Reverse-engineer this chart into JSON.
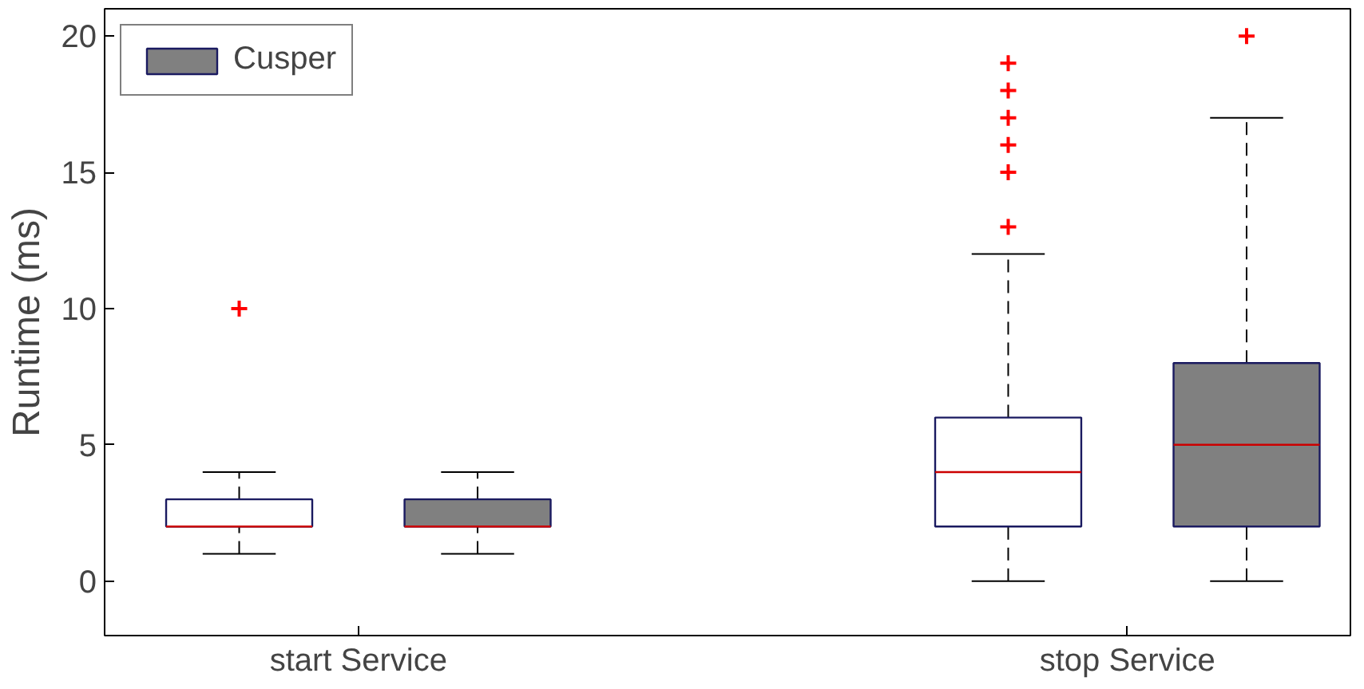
{
  "chart_data": {
    "type": "box",
    "ylabel": "Runtime (ms)",
    "categories": [
      "start Service",
      "stop Service"
    ],
    "series": [
      {
        "color": "#ffffff",
        "boxes": [
          {
            "low": 1,
            "q1": 2,
            "median": 2,
            "q3": 3,
            "high": 4,
            "outliers": [
              10
            ]
          },
          {
            "low": 0,
            "q1": 2,
            "median": 4,
            "q3": 6,
            "high": 12,
            "outliers": [
              13,
              15,
              16,
              17,
              18,
              19
            ]
          }
        ]
      },
      {
        "name": "Cusper",
        "color": "#808080",
        "boxes": [
          {
            "low": 1,
            "q1": 2,
            "median": 2,
            "q3": 3,
            "high": 4
          },
          {
            "low": 0,
            "q1": 2,
            "median": 5,
            "q3": 8,
            "high": 17,
            "outliers": [
              20
            ]
          }
        ]
      }
    ],
    "ylim": [
      -2,
      21
    ],
    "yticks": [
      0,
      5,
      10,
      15,
      20
    ],
    "grid": false,
    "legend": "top left",
    "marker": "cross"
  }
}
